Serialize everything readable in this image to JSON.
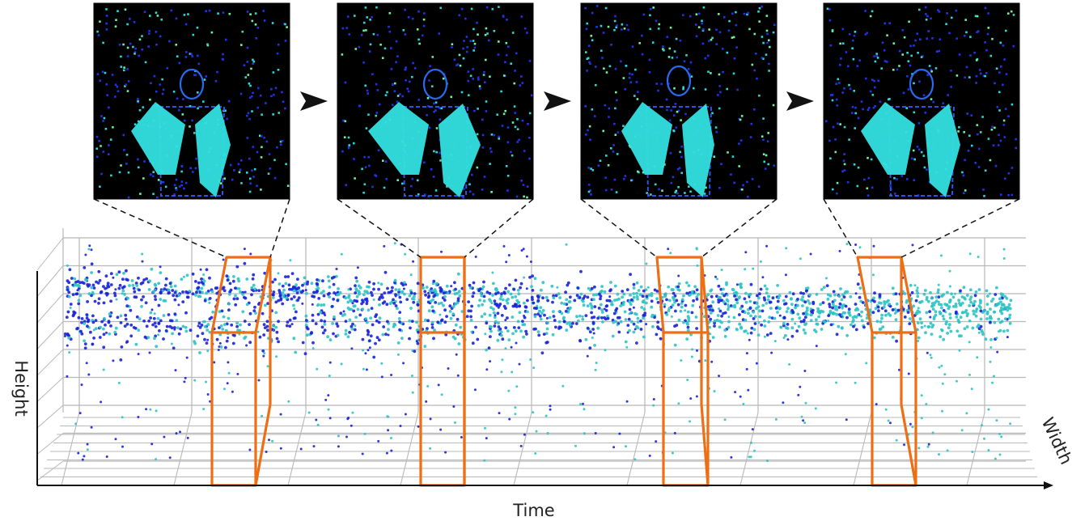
{
  "figure": {
    "axes": {
      "x_label": "Time",
      "y_label": "Height",
      "z_label": "Width"
    },
    "frames": [
      {
        "id": "frame-1",
        "description_icon": "event-frame"
      },
      {
        "id": "frame-2",
        "description_icon": "event-frame"
      },
      {
        "id": "frame-3",
        "description_icon": "event-frame"
      },
      {
        "id": "frame-4",
        "description_icon": "event-frame"
      }
    ],
    "arrow_icon": "right-arrow-icon",
    "colors": {
      "event_dark": "#1a22d8",
      "event_light": "#2ec4c4",
      "frame_background": "#000000",
      "silhouette": "#33e0e0",
      "slice_box": "#ee6e14",
      "grid": "#b8b8b8",
      "axis": "#111111"
    }
  }
}
